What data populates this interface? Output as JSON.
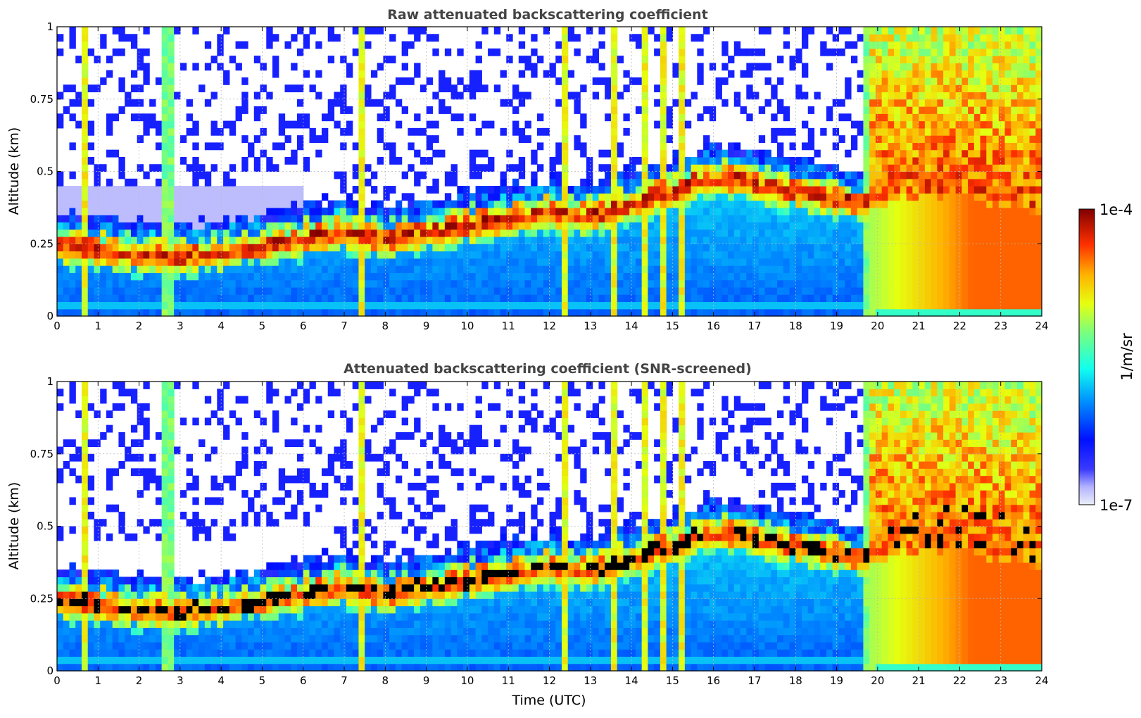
{
  "chart_data": [
    {
      "type": "heatmap",
      "title": "Raw attenuated backscattering coefficient",
      "xlabel": "",
      "ylabel": "Altitude (km)",
      "xlim": [
        0,
        24
      ],
      "ylim": [
        0,
        1
      ],
      "x_ticks": [
        "0",
        "1",
        "2",
        "3",
        "4",
        "5",
        "6",
        "7",
        "8",
        "9",
        "10",
        "11",
        "12",
        "13",
        "14",
        "15",
        "16",
        "17",
        "18",
        "19",
        "20",
        "21",
        "22",
        "23",
        "24"
      ],
      "y_ticks": [
        "0",
        "0.25",
        "0.5",
        "0.75",
        "1"
      ],
      "grid": true,
      "screened": false
    },
    {
      "type": "heatmap",
      "title": "Attenuated backscattering coefficient (SNR-screened)",
      "xlabel": "Time (UTC)",
      "ylabel": "Altitude (km)",
      "xlim": [
        0,
        24
      ],
      "ylim": [
        0,
        1
      ],
      "x_ticks": [
        "0",
        "1",
        "2",
        "3",
        "4",
        "5",
        "6",
        "7",
        "8",
        "9",
        "10",
        "11",
        "12",
        "13",
        "14",
        "15",
        "16",
        "17",
        "18",
        "19",
        "20",
        "21",
        "22",
        "23",
        "24"
      ],
      "y_ticks": [
        "0",
        "0.25",
        "0.5",
        "0.75",
        "1"
      ],
      "grid": true,
      "screened": true
    }
  ],
  "colorbar": {
    "max_label": "1e-4",
    "min_label": "1e-7",
    "label": "1/m/sr",
    "colormap": "jet (log scale)"
  },
  "approx_features": {
    "boundary_layer_top_km": [
      [
        0,
        0.26
      ],
      [
        3,
        0.22
      ],
      [
        5,
        0.26
      ],
      [
        7,
        0.31
      ],
      [
        8,
        0.28
      ],
      [
        10,
        0.33
      ],
      [
        12,
        0.38
      ],
      [
        13,
        0.36
      ],
      [
        15,
        0.45
      ],
      [
        16,
        0.5
      ],
      [
        18,
        0.45
      ],
      [
        20,
        0.4
      ],
      [
        22,
        0.42
      ],
      [
        24,
        0.35
      ]
    ],
    "vertical_streaks_utc": [
      0.7,
      2.7,
      7.4,
      12.4,
      13.6,
      14.3,
      14.8,
      15.2,
      19.8
    ],
    "high_signal_period_utc": [
      19.8,
      24
    ]
  }
}
